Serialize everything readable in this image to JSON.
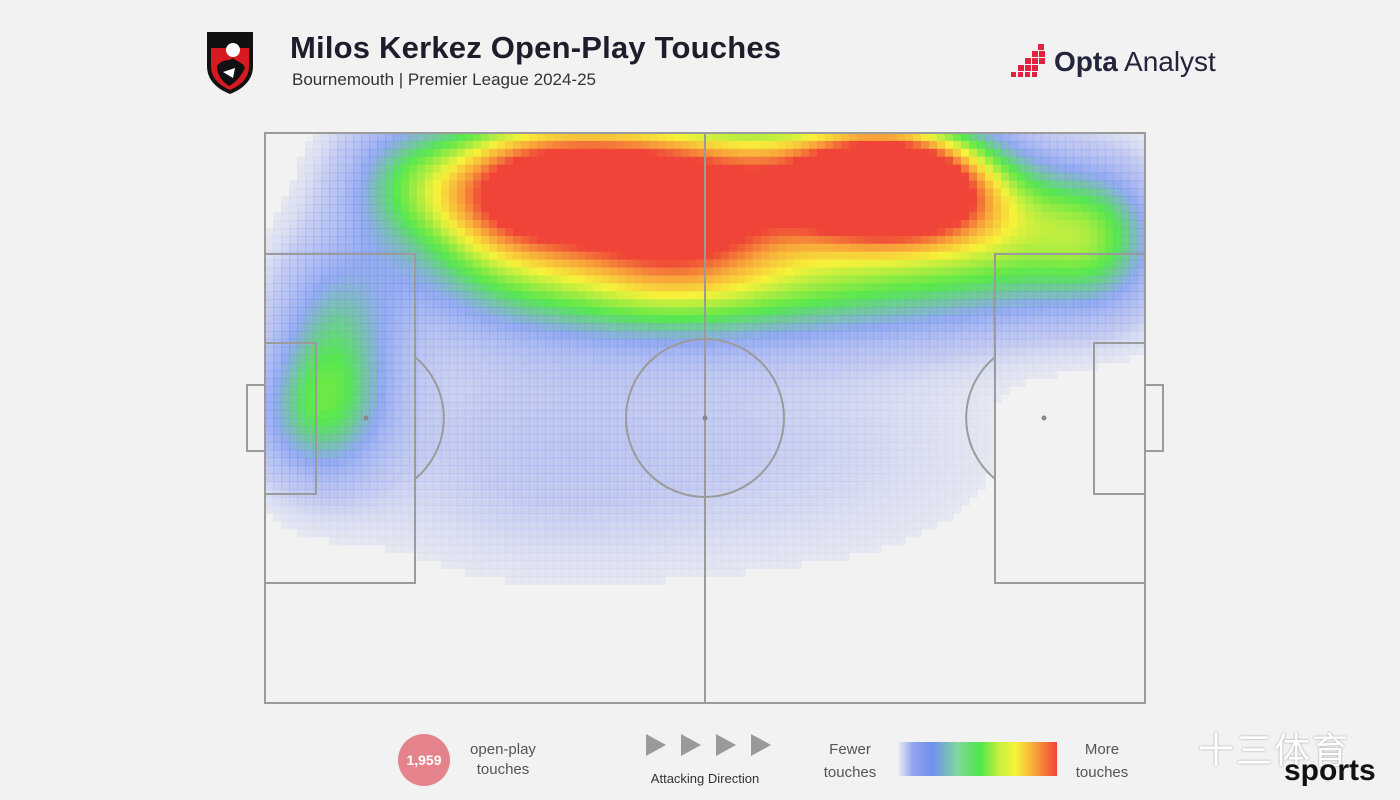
{
  "header": {
    "title": "Milos Kerkez Open-Play Touches",
    "subtitle": "Bournemouth | Premier League 2024-25",
    "crest_icon": "bournemouth-crest-icon",
    "brand": {
      "bold": "Opta",
      "regular": " Analyst",
      "logo_icon": "opta-analyst-logo-icon",
      "accent": "#e0233f"
    }
  },
  "chart_data": {
    "type": "heatmap",
    "title": "Milos Kerkez Open-Play Touches",
    "pitch": "full football pitch, attacking left to right",
    "grid": false,
    "colorscale": [
      "#f2f2f2",
      "#6f8ef0",
      "#4fe64a",
      "#f7f23a",
      "#ef4437"
    ],
    "hotspots": [
      {
        "x": 0.72,
        "y": 0.09,
        "sx": 0.075,
        "sy": 0.07,
        "intensity": 1.0
      },
      {
        "x": 0.62,
        "y": 0.1,
        "sx": 0.12,
        "sy": 0.1,
        "intensity": 0.72
      },
      {
        "x": 0.36,
        "y": 0.09,
        "sx": 0.09,
        "sy": 0.09,
        "intensity": 0.8
      },
      {
        "x": 0.26,
        "y": 0.12,
        "sx": 0.08,
        "sy": 0.1,
        "intensity": 0.6
      },
      {
        "x": 0.47,
        "y": 0.14,
        "sx": 0.08,
        "sy": 0.1,
        "intensity": 0.6
      },
      {
        "x": 0.85,
        "y": 0.17,
        "sx": 0.08,
        "sy": 0.08,
        "intensity": 0.4
      },
      {
        "x": 0.95,
        "y": 0.18,
        "sx": 0.05,
        "sy": 0.09,
        "intensity": 0.35
      },
      {
        "x": 0.4,
        "y": 0.28,
        "sx": 0.15,
        "sy": 0.07,
        "intensity": 0.32
      },
      {
        "x": 0.7,
        "y": 0.28,
        "sx": 0.16,
        "sy": 0.07,
        "intensity": 0.28
      },
      {
        "x": 0.08,
        "y": 0.38,
        "sx": 0.05,
        "sy": 0.13,
        "intensity": 0.38
      },
      {
        "x": 0.05,
        "y": 0.5,
        "sx": 0.05,
        "sy": 0.08,
        "intensity": 0.25
      },
      {
        "x": 0.15,
        "y": 0.08,
        "sx": 0.05,
        "sy": 0.08,
        "intensity": 0.22
      },
      {
        "x": 0.3,
        "y": 0.55,
        "sx": 0.15,
        "sy": 0.15,
        "intensity": 0.12
      },
      {
        "x": 0.6,
        "y": 0.55,
        "sx": 0.18,
        "sy": 0.15,
        "intensity": 0.09
      }
    ]
  },
  "footer": {
    "touches_count": "1,959",
    "touches_label": "open-play touches",
    "direction_label": "Attacking Direction",
    "direction_icon": "attacking-direction-arrows-icon",
    "legend_low": "Fewer touches",
    "legend_high": "More touches",
    "badge_color": "#e5838c"
  },
  "watermark": {
    "cn": "十三体育",
    "en": "sports"
  }
}
